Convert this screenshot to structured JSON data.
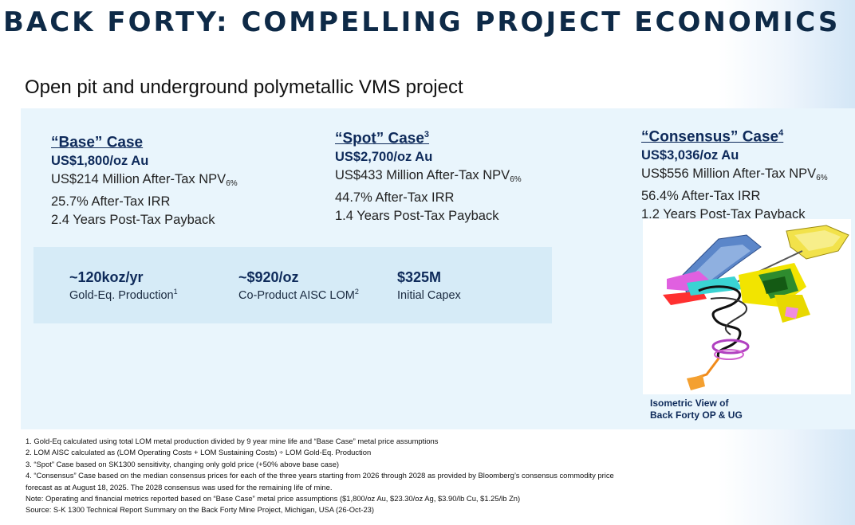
{
  "title": "BACK FORTY: COMPELLING PROJECT ECONOMICS",
  "subtitle": "Open pit and underground polymetallic VMS project",
  "cases": {
    "base": {
      "heading": "“Base” Case",
      "sup": "",
      "price": "US$1,800/oz Au",
      "npv": "US$214 Million After-Tax NPV",
      "npv_sub": "6%",
      "irr": "25.7% After-Tax IRR",
      "payback": "2.4 Years Post-Tax Payback"
    },
    "spot": {
      "heading": "“Spot” Case",
      "sup": "3",
      "price": "US$2,700/oz Au",
      "npv": "US$433 Million After-Tax NPV",
      "npv_sub": "6%",
      "irr": "44.7% After-Tax IRR",
      "payback": "1.4 Years Post-Tax Payback"
    },
    "consensus": {
      "heading": "“Consensus” Case",
      "sup": "4",
      "price": "US$3,036/oz Au",
      "npv": "US$556 Million After-Tax NPV",
      "npv_sub": "6%",
      "irr": "56.4% After-Tax IRR",
      "payback": "1.2 Years Post-Tax Payback"
    }
  },
  "metrics": [
    {
      "value": "~120koz/yr",
      "label": "Gold-Eq. Production",
      "sup": "1"
    },
    {
      "value": "~$920/oz",
      "label": "Co-Product AISC LOM",
      "sup": "2"
    },
    {
      "value": "$325M",
      "label": "Initial Capex",
      "sup": ""
    }
  ],
  "image_caption": {
    "line1": "Isometric View of",
    "line2": "Back Forty OP & UG"
  },
  "notes": [
    "1. Gold-Eq calculated using total LOM metal production divided by 9 year mine life and “Base Case” metal price assumptions",
    "2. LOM AISC calculated as (LOM Operating Costs + LOM Sustaining Costs) ÷ LOM Gold-Eq. Production",
    "3. “Spot” Case based on SK1300 sensitivity, changing only gold price (+50% above base case)",
    "4. “Consensus” Case based on the median consensus prices for each of the three years starting from 2026 through 2028 as provided by Bloomberg’s consensus commodity price",
    "forecast as at August 18, 2025. The 2028 consensus was used for the remaining life of mine.",
    "Note: Operating and financial metrics reported based on “Base Case” metal price assumptions ($1,800/oz Au, $23.30/oz Ag, $3.90/lb Cu, $1.25/lb Zn)",
    "Source: S-K 1300 Technical Report Summary on the Back Forty Mine Project, Michigan, USA (26-Oct-23)"
  ],
  "colors": {
    "navy": "#0e2a5a",
    "panel": "#e9f5fc",
    "metrics_box": "#d6ebf7"
  }
}
